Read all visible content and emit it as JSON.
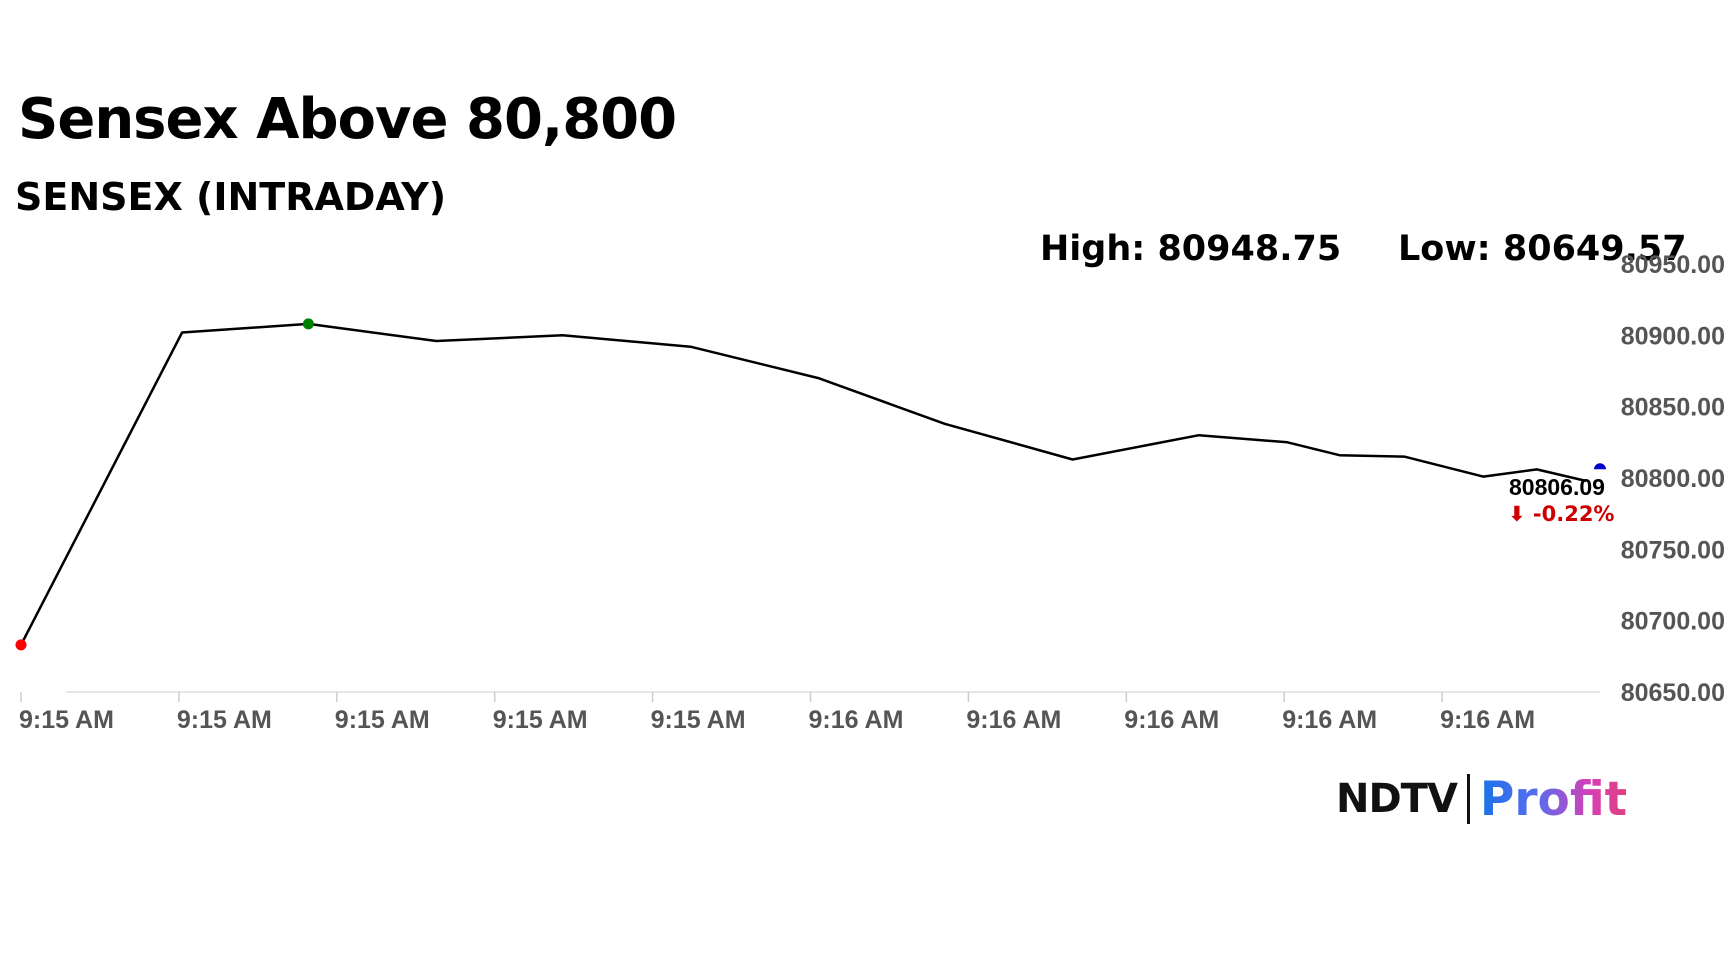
{
  "header": {
    "title": "Sensex Above 80,800",
    "subtitle": "SENSEX (INTRADAY)",
    "high_label": "High: 80948.75",
    "low_label": "Low: 80649.57"
  },
  "logo": {
    "brand": "NDTV",
    "product": "Profit"
  },
  "colors": {
    "line": "#000000",
    "start_marker": "#ff0000",
    "high_marker": "#008000",
    "end_marker": "#0000cc",
    "change": "#cc0000",
    "axis_text": "#555555",
    "grid": "#dddddd"
  },
  "chart_data": {
    "type": "line",
    "series": [
      {
        "values": [
          80683,
          80902,
          80908,
          80896,
          80900,
          80892,
          80870,
          80838,
          80813,
          80830,
          80825,
          80816,
          80815,
          80801,
          80806,
          80798
        ]
      }
    ],
    "x": [
      0,
      1.02,
      1.82,
      2.63,
      3.43,
      4.24,
      5.05,
      5.85,
      6.66,
      7.46,
      8.02,
      8.35,
      8.76,
      9.26,
      9.6,
      9.91
    ],
    "x_tick_labels": [
      "9:15 AM",
      "9:15 AM",
      "9:15 AM",
      "9:15 AM",
      "9:15 AM",
      "9:16 AM",
      "9:16 AM",
      "9:16 AM",
      "9:16 AM",
      "9:16 AM"
    ],
    "y_tick_labels": [
      "80950.00",
      "80900.00",
      "80850.00",
      "80800.00",
      "80750.00",
      "80700.00",
      "80650.00"
    ],
    "y_ticks": [
      80950,
      80900,
      80850,
      80800,
      80750,
      80700,
      80650
    ],
    "ylim": [
      80650,
      80950
    ],
    "xlim": [
      0,
      10
    ],
    "high": 80948.75,
    "low": 80649.57,
    "last_value": "80806.09",
    "last_value_num": 80806.09,
    "change_label": "⬇ -0.22%",
    "markers": {
      "start_index": 0,
      "high_index": 2
    }
  }
}
